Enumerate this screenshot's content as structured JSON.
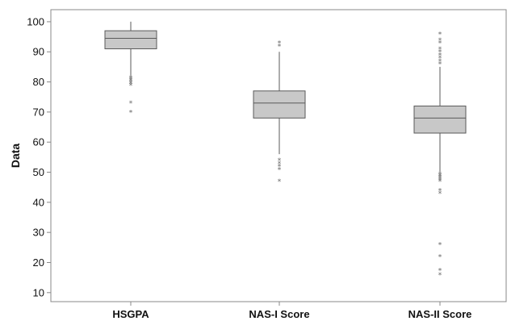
{
  "chart_data": {
    "type": "box",
    "ylabel": "Data",
    "ylim": [
      7,
      104
    ],
    "yticks": [
      10,
      20,
      30,
      40,
      50,
      60,
      70,
      80,
      90,
      100
    ],
    "categories": [
      "HSGPA",
      "NAS-I Score",
      "NAS-II Score"
    ],
    "boxes": [
      {
        "category": "HSGPA",
        "whisker_low": 82,
        "q1": 91,
        "median": 94.5,
        "q3": 97,
        "whisker_high": 100,
        "outliers": [
          81.5,
          81,
          80.5,
          80,
          79.5,
          79,
          73,
          70
        ]
      },
      {
        "category": "NAS-I Score",
        "whisker_low": 56,
        "q1": 68,
        "median": 73,
        "q3": 77,
        "whisker_high": 90,
        "outliers": [
          93,
          92,
          54,
          53,
          52,
          51,
          47
        ]
      },
      {
        "category": "NAS-II Score",
        "whisker_low": 50,
        "q1": 63,
        "median": 68,
        "q3": 72,
        "whisker_high": 85,
        "outliers": [
          96,
          94,
          93,
          91,
          90,
          89,
          88,
          87,
          86,
          49.5,
          49,
          48.5,
          48,
          47.5,
          47,
          44,
          43,
          26,
          22,
          17.5,
          16
        ]
      }
    ],
    "colors": {
      "box_fill": "#c8c8c8",
      "box_stroke": "#5a5a5a",
      "whisker": "#5a5a5a",
      "outlier": "#666666"
    }
  }
}
